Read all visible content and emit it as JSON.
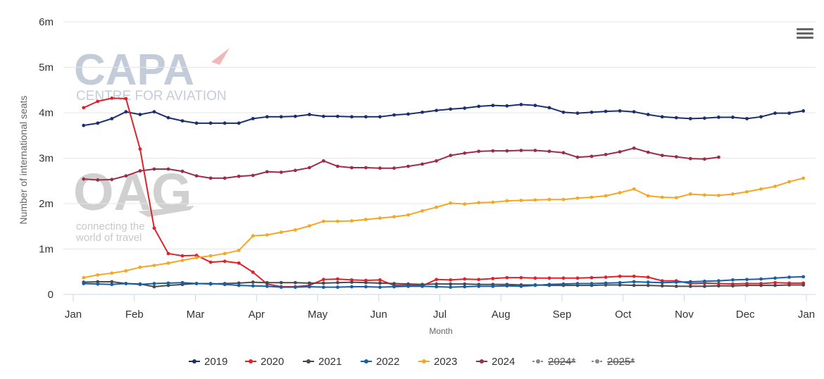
{
  "watermark": {
    "capa_logo": "CAPA",
    "capa_subtitle": "CENTRE FOR AVIATION",
    "oag_logo": "OAG",
    "oag_tagline_1": "connecting the",
    "oag_tagline_2": "world of travel"
  },
  "menu": {
    "icon": "hamburger-menu-icon"
  },
  "chart_data": {
    "type": "line",
    "title": "",
    "xlabel": "Month",
    "ylabel": "Number of international seats",
    "ylim": [
      0,
      6
    ],
    "xlim": [
      0,
      12
    ],
    "x_ticks": [
      "Jan",
      "Feb",
      "Mar",
      "Apr",
      "May",
      "Jun",
      "Jul",
      "Aug",
      "Sep",
      "Oct",
      "Nov",
      "Dec",
      "Jan"
    ],
    "y_ticks": [
      "0",
      "1m",
      "2m",
      "3m",
      "4m",
      "5m",
      "6m"
    ],
    "y_unit": "millions of seats",
    "grid": true,
    "legend_placement": "bottom",
    "series": [
      {
        "name": "2019",
        "color": "#1b2f6e",
        "hidden": false,
        "values": [
          3.72,
          3.77,
          3.87,
          4.02,
          3.96,
          4.02,
          3.89,
          3.82,
          3.77,
          3.77,
          3.77,
          3.77,
          3.87,
          3.91,
          3.91,
          3.92,
          3.96,
          3.92,
          3.92,
          3.91,
          3.91,
          3.91,
          3.95,
          3.97,
          4.01,
          4.05,
          4.08,
          4.1,
          4.14,
          4.16,
          4.15,
          4.18,
          4.16,
          4.11,
          4.01,
          3.99,
          4.01,
          4.03,
          4.04,
          4.02,
          3.96,
          3.91,
          3.89,
          3.87,
          3.88,
          3.9,
          3.9,
          3.87,
          3.91,
          3.99,
          3.99,
          4.04
        ]
      },
      {
        "name": "2020",
        "color": "#e2202a",
        "hidden": false,
        "values": [
          4.11,
          4.25,
          4.32,
          4.31,
          3.2,
          1.46,
          0.9,
          0.85,
          0.86,
          0.71,
          0.73,
          0.69,
          0.49,
          0.23,
          0.17,
          0.17,
          0.2,
          0.33,
          0.34,
          0.32,
          0.31,
          0.32,
          0.2,
          0.2,
          0.19,
          0.33,
          0.32,
          0.34,
          0.33,
          0.35,
          0.37,
          0.37,
          0.36,
          0.36,
          0.36,
          0.36,
          0.37,
          0.38,
          0.4,
          0.4,
          0.38,
          0.3,
          0.3,
          0.24,
          0.25,
          0.24,
          0.23,
          0.24,
          0.24,
          0.26,
          0.25,
          0.25
        ]
      },
      {
        "name": "2021",
        "color": "#4a4a4a",
        "hidden": false,
        "values": [
          0.27,
          0.28,
          0.28,
          0.24,
          0.23,
          0.17,
          0.2,
          0.22,
          0.24,
          0.23,
          0.24,
          0.25,
          0.27,
          0.26,
          0.26,
          0.26,
          0.25,
          0.25,
          0.26,
          0.27,
          0.26,
          0.25,
          0.24,
          0.23,
          0.22,
          0.23,
          0.23,
          0.23,
          0.22,
          0.22,
          0.22,
          0.21,
          0.21,
          0.2,
          0.2,
          0.2,
          0.2,
          0.21,
          0.21,
          0.2,
          0.2,
          0.19,
          0.18,
          0.18,
          0.18,
          0.19,
          0.19,
          0.2,
          0.2,
          0.2,
          0.21,
          0.21
        ]
      },
      {
        "name": "2022",
        "color": "#1660a8",
        "hidden": false,
        "values": [
          0.24,
          0.23,
          0.22,
          0.24,
          0.22,
          0.24,
          0.25,
          0.26,
          0.24,
          0.24,
          0.22,
          0.2,
          0.19,
          0.18,
          0.16,
          0.16,
          0.17,
          0.16,
          0.16,
          0.17,
          0.17,
          0.16,
          0.17,
          0.18,
          0.18,
          0.17,
          0.16,
          0.17,
          0.18,
          0.18,
          0.19,
          0.18,
          0.2,
          0.22,
          0.23,
          0.24,
          0.24,
          0.25,
          0.26,
          0.28,
          0.27,
          0.26,
          0.27,
          0.28,
          0.29,
          0.3,
          0.32,
          0.33,
          0.34,
          0.36,
          0.38,
          0.39
        ]
      },
      {
        "name": "2023",
        "color": "#f5a623",
        "hidden": false,
        "values": [
          0.37,
          0.43,
          0.47,
          0.52,
          0.6,
          0.64,
          0.69,
          0.75,
          0.81,
          0.85,
          0.9,
          0.97,
          1.29,
          1.31,
          1.37,
          1.42,
          1.51,
          1.61,
          1.61,
          1.62,
          1.65,
          1.68,
          1.71,
          1.75,
          1.84,
          1.92,
          2.01,
          1.99,
          2.02,
          2.03,
          2.06,
          2.07,
          2.08,
          2.09,
          2.09,
          2.12,
          2.14,
          2.17,
          2.24,
          2.32,
          2.17,
          2.14,
          2.13,
          2.21,
          2.19,
          2.18,
          2.21,
          2.26,
          2.32,
          2.38,
          2.48,
          2.56
        ]
      },
      {
        "name": "2024",
        "color": "#9b2d46",
        "hidden": false,
        "values": [
          2.54,
          2.52,
          2.53,
          2.61,
          2.72,
          2.76,
          2.76,
          2.71,
          2.61,
          2.56,
          2.56,
          2.6,
          2.62,
          2.7,
          2.69,
          2.73,
          2.79,
          2.94,
          2.82,
          2.79,
          2.79,
          2.78,
          2.78,
          2.82,
          2.87,
          2.94,
          3.06,
          3.11,
          3.15,
          3.16,
          3.16,
          3.17,
          3.17,
          3.15,
          3.12,
          3.02,
          3.04,
          3.08,
          3.14,
          3.22,
          3.13,
          3.06,
          3.03,
          2.99,
          2.98,
          3.02
        ]
      },
      {
        "name": "2024*",
        "color": "#888888",
        "hidden": true,
        "values": []
      },
      {
        "name": "2025*",
        "color": "#888888",
        "hidden": true,
        "values": []
      }
    ]
  }
}
